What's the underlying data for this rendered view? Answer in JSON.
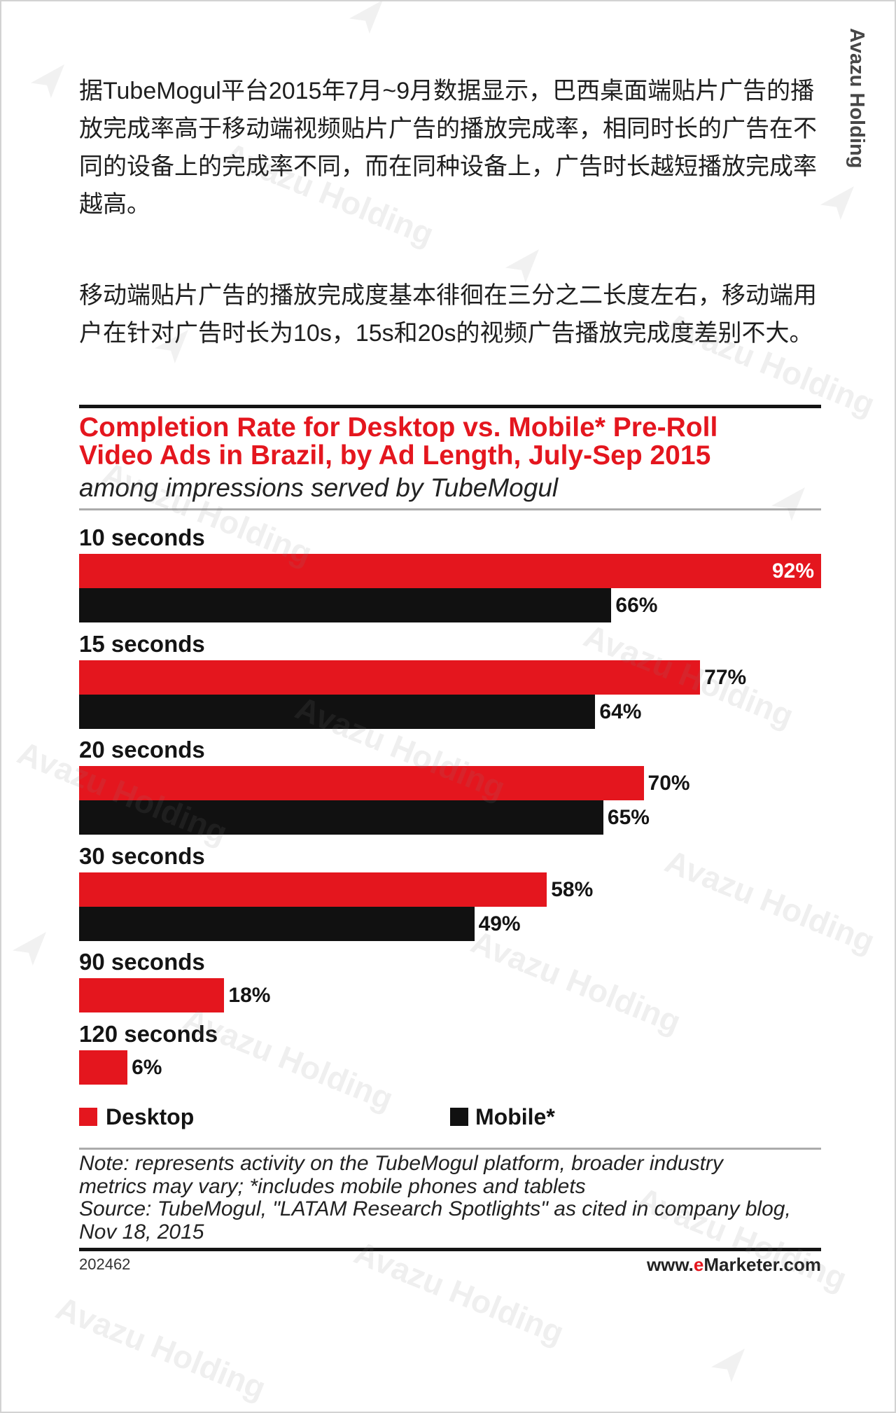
{
  "side_label": "Avazu Holding",
  "watermark": "Avazu Holding",
  "intro": {
    "paragraph1": [
      "据TubeMogul平台2015年7月~9月数据显示，巴西桌面端贴片广告的播",
      "放完成率高于移动端视频贴片广告的播放完成率，相同时长的广告在不",
      "同的设备上的完成率不同，而在同种设备上，广告时长越短播放完成率",
      "越高。"
    ],
    "paragraph2": [
      "移动端贴片广告的播放完成度基本徘徊在三分之二长度左右，移动端用",
      "户在针对广告时长为10s，15s和20s的视频广告播放完成度差别不大。"
    ]
  },
  "chart_data": {
    "type": "bar",
    "orientation": "horizontal",
    "title": "Completion Rate for Desktop vs. Mobile* Pre-Roll Video Ads in Brazil, by Ad Length, July-Sep 2015",
    "subtitle": "among impressions served by TubeMogul",
    "categories": [
      "10 seconds",
      "15 seconds",
      "20 seconds",
      "30 seconds",
      "90 seconds",
      "120 seconds"
    ],
    "series": [
      {
        "name": "Desktop",
        "color": "#e4161e",
        "values": [
          92,
          77,
          70,
          58,
          18,
          6
        ],
        "labels": [
          "92%",
          "77%",
          "70%",
          "58%",
          "18%",
          "6%"
        ]
      },
      {
        "name": "Mobile*",
        "color": "#111111",
        "values": [
          66,
          64,
          65,
          49,
          null,
          null
        ],
        "labels": [
          "66%",
          "64%",
          "65%",
          "49%",
          null,
          null
        ]
      }
    ],
    "xlim": [
      0,
      92
    ],
    "grid": false,
    "legend": "bottom"
  },
  "source_notes": [
    "Note: represents activity on the TubeMogul platform, broader industry",
    "metrics may vary; *includes mobile phones and tablets",
    "Source: TubeMogul, \"LATAM Research Spotlights\" as cited in company blog,",
    "Nov 18, 2015"
  ],
  "footer": {
    "chart_id": "202462",
    "site_prefix": "www.",
    "site_brand_e": "e",
    "site_rest": "Marketer.com"
  },
  "colors": {
    "title": "#e4161e",
    "desktop": "#e4161e",
    "mobile": "#111111",
    "brand_e": "#e4161e"
  }
}
